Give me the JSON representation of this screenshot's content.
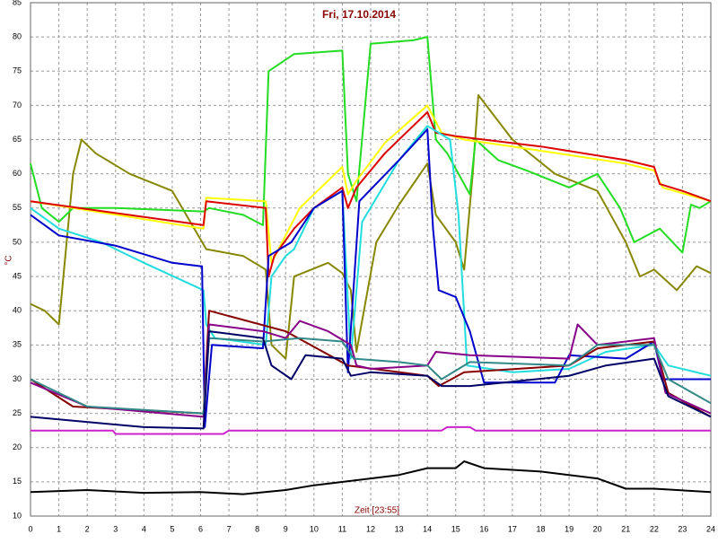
{
  "chart_data": {
    "type": "line",
    "title": "Fri, 17.10.2014",
    "x_label": "Zeit [23:55]",
    "y_label": "°C",
    "xlim": [
      0,
      24
    ],
    "xticks": [
      0,
      1,
      2,
      3,
      4,
      5,
      6,
      7,
      8,
      9,
      10,
      11,
      12,
      13,
      14,
      15,
      16,
      17,
      18,
      19,
      20,
      21,
      22,
      23,
      24
    ],
    "ylim": [
      10,
      85
    ],
    "yticks": [
      10,
      15,
      20,
      25,
      30,
      35,
      40,
      45,
      50,
      55,
      60,
      65,
      70,
      75,
      80,
      85
    ],
    "grid": true,
    "series": [
      {
        "color": "#888800",
        "x": [
          0,
          0.5,
          1,
          1.5,
          1.8,
          2.3,
          3.5,
          5,
          6.2,
          7.5,
          8.3,
          8.5,
          9,
          9.3,
          10.5,
          11,
          11.3,
          11.5,
          12.2,
          13,
          14,
          14.3,
          15,
          15.3,
          15.6,
          15.8,
          17,
          18.5,
          20,
          21,
          21.5,
          22,
          22.8,
          23.5,
          24
        ],
        "values": [
          41,
          40,
          38,
          60,
          65,
          63,
          60,
          57.5,
          49,
          48,
          46,
          35,
          33,
          45,
          47,
          45.5,
          43,
          34,
          50,
          55.5,
          61.5,
          54,
          50,
          46,
          60,
          71.5,
          65,
          60,
          57.5,
          50,
          45,
          46,
          43,
          46.5,
          45.5
        ]
      },
      {
        "color": "#22dd22",
        "x": [
          0,
          0.4,
          1,
          1.5,
          3,
          6.1,
          6.3,
          7.5,
          8.2,
          8.4,
          9.3,
          11,
          11.2,
          11.5,
          12,
          13.5,
          14,
          14.3,
          14.7,
          15.5,
          15.7,
          16.5,
          17.5,
          19,
          20,
          20.8,
          21.3,
          22.2,
          23,
          23.3,
          23.6,
          24
        ],
        "values": [
          61.5,
          55,
          53,
          55,
          55,
          54.5,
          55,
          54,
          52.5,
          75,
          77.5,
          78,
          60,
          56,
          79,
          79.5,
          80,
          65,
          63,
          57,
          65,
          62,
          60.5,
          58,
          60,
          55,
          50,
          52,
          48.5,
          55.5,
          55,
          56
        ]
      },
      {
        "color": "#ffff00",
        "x": [
          0,
          6.1,
          6.2,
          8.3,
          8.5,
          9.5,
          11,
          11.2,
          11.5,
          12.5,
          14,
          14.5,
          15.3,
          17,
          21,
          22,
          22.3,
          24
        ],
        "values": [
          56,
          52,
          56.5,
          56,
          47,
          55,
          61,
          57,
          59,
          64.5,
          70,
          66,
          65,
          64,
          61.5,
          60.5,
          58,
          56
        ]
      },
      {
        "color": "#dd0000",
        "x": [
          0,
          6.1,
          6.2,
          8.3,
          8.4,
          8.6,
          9.3,
          10,
          11,
          11.2,
          11.5,
          12.5,
          14,
          14.3,
          15,
          18,
          21,
          22,
          22.2,
          23,
          24
        ],
        "values": [
          56,
          52.5,
          56,
          55,
          45,
          48,
          52,
          55,
          58,
          55,
          58,
          63,
          69,
          66,
          65.5,
          64,
          62,
          61,
          58.5,
          57.5,
          56
        ]
      },
      {
        "color": "#22dddd",
        "x": [
          0,
          1,
          2.5,
          4,
          6.1,
          6.2,
          6.5,
          8.3,
          8.5,
          9,
          9.3,
          10,
          11,
          11.3,
          11.7,
          13,
          14,
          14.8,
          15.1,
          15.4,
          17,
          19,
          20.3,
          22,
          22.5,
          24
        ],
        "values": [
          55,
          52,
          50,
          47,
          43,
          38,
          36,
          35,
          45,
          48,
          49,
          55,
          57.5,
          33,
          53,
          62,
          67,
          65,
          54,
          32,
          31,
          31.5,
          34,
          35,
          32,
          30.5
        ]
      },
      {
        "color": "#0000cc",
        "x": [
          0,
          1,
          3,
          5,
          6,
          6.05,
          6.15,
          6.4,
          8.2,
          8.4,
          9.2,
          10,
          11,
          11.2,
          11.6,
          13,
          14,
          14.2,
          14.4,
          15,
          15.5,
          16,
          18.5,
          19,
          21,
          22,
          22.3,
          24
        ],
        "values": [
          54,
          51,
          49.5,
          47,
          46.5,
          46.5,
          23,
          35,
          34.5,
          48,
          50,
          55,
          57.5,
          31,
          56,
          62,
          66.5,
          52,
          43,
          42,
          37,
          29.5,
          29.5,
          33.5,
          33,
          35.5,
          30,
          30
        ]
      },
      {
        "color": "#880000",
        "x": [
          0,
          1.5,
          6.1,
          6.3,
          9,
          11.2,
          14,
          14.4,
          15.3,
          19,
          20,
          22,
          22.5,
          24
        ],
        "values": [
          30,
          26,
          25,
          40,
          37,
          32,
          30.5,
          29,
          31,
          32,
          34.5,
          35.5,
          28,
          24.5
        ]
      },
      {
        "color": "#880088",
        "x": [
          0,
          2,
          6.1,
          6.3,
          8.2,
          9,
          9.5,
          10.5,
          11.3,
          11.5,
          12,
          14,
          14.3,
          15.5,
          19,
          19.3,
          20,
          22,
          22.4,
          24
        ],
        "values": [
          29.5,
          26,
          24.5,
          38,
          37,
          36,
          38.5,
          37,
          35,
          32,
          31.5,
          32,
          34,
          33.5,
          33,
          38,
          35,
          36,
          28,
          25
        ]
      },
      {
        "color": "#338888",
        "x": [
          0,
          2,
          6.1,
          6.3,
          8.2,
          9.5,
          11,
          11.4,
          13,
          14,
          14.5,
          15.5,
          19,
          20,
          22,
          22.5,
          24
        ],
        "values": [
          30,
          26,
          25,
          36,
          35.5,
          36,
          35.5,
          33,
          32.5,
          32,
          30,
          32.5,
          32,
          35,
          35,
          30,
          26.5
        ]
      },
      {
        "color": "#000066",
        "x": [
          0,
          4,
          6.1,
          6.3,
          8.2,
          8.5,
          9.2,
          9.7,
          11,
          11.3,
          12,
          14,
          14.5,
          15.5,
          19,
          20.3,
          22,
          22.5,
          24
        ],
        "values": [
          24.5,
          23,
          22.8,
          37,
          36,
          32,
          30,
          33.5,
          33,
          30.5,
          31,
          30.5,
          29,
          29,
          30.5,
          32,
          33,
          27.5,
          24.5
        ]
      },
      {
        "color": "#cc22cc",
        "x": [
          0,
          2.9,
          3,
          6.8,
          7,
          14.5,
          14.7,
          15.5,
          15.7,
          24
        ],
        "values": [
          22.5,
          22.5,
          22,
          22,
          22.5,
          22.5,
          23,
          23,
          22.5,
          22.5
        ]
      },
      {
        "color": "#000000",
        "x": [
          0,
          2,
          4,
          6,
          7.5,
          9,
          10,
          12,
          13,
          14,
          15,
          15.3,
          16,
          18,
          20,
          21,
          22,
          24
        ],
        "values": [
          13.5,
          13.8,
          13.4,
          13.5,
          13.2,
          13.8,
          14.5,
          15.5,
          16,
          17,
          17,
          18,
          17,
          16.5,
          15.5,
          14,
          14,
          13.5
        ]
      }
    ]
  }
}
